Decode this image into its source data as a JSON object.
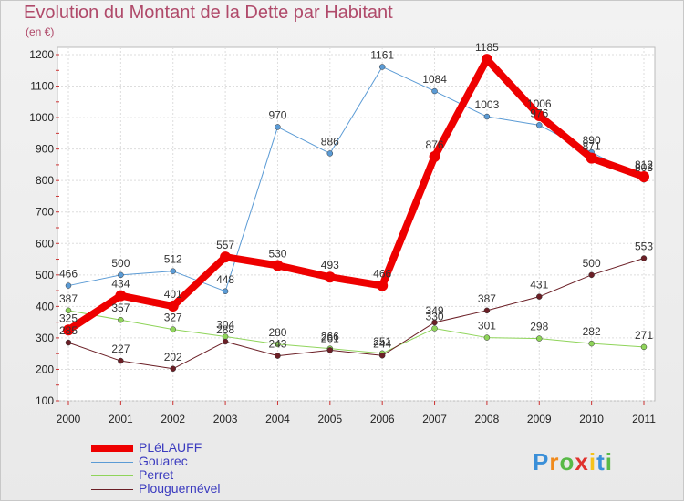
{
  "chart_data": {
    "type": "line",
    "title": "Evolution du Montant de la Dette par Habitant",
    "subtitle": "(en €)",
    "xlabel": "",
    "ylabel": "",
    "categories": [
      "2000",
      "2001",
      "2002",
      "2003",
      "2004",
      "2005",
      "2006",
      "2007",
      "2008",
      "2009",
      "2010",
      "2011"
    ],
    "ylim": [
      100,
      1200
    ],
    "yticks": [
      100,
      200,
      300,
      400,
      500,
      600,
      700,
      800,
      900,
      1000,
      1100,
      1200
    ],
    "grid": true,
    "legend_position": "bottom-left",
    "series": [
      {
        "name": "Gouarec",
        "color": "#5b9bd5",
        "width": 1,
        "values": [
          466,
          500,
          512,
          448,
          970,
          886,
          1161,
          1084,
          1003,
          976,
          890,
          803
        ]
      },
      {
        "name": "Perret",
        "color": "#8fd45a",
        "width": 1,
        "values": [
          387,
          357,
          327,
          304,
          280,
          266,
          251,
          330,
          301,
          298,
          282,
          271
        ]
      },
      {
        "name": "Plouguernével",
        "color": "#6b1f26",
        "width": 1,
        "values": [
          285,
          227,
          202,
          288,
          243,
          261,
          244,
          349,
          387,
          431,
          500,
          553
        ]
      },
      {
        "name": "PLéLAUFF",
        "color": "#ee0000",
        "width": 8,
        "values": [
          325,
          434,
          401,
          557,
          530,
          493,
          466,
          876,
          1185,
          1006,
          871,
          812
        ]
      }
    ]
  },
  "legend": {
    "items": [
      {
        "name": "PLéLAUFF",
        "color": "#ee0000",
        "width": 8
      },
      {
        "name": "Gouarec",
        "color": "#5b9bd5",
        "width": 1
      },
      {
        "name": "Perret",
        "color": "#8fd45a",
        "width": 1
      },
      {
        "name": "Plouguernével",
        "color": "#6b1f26",
        "width": 1
      }
    ]
  },
  "logo": {
    "letters": [
      "P",
      "r",
      "o",
      "x",
      "i",
      "t",
      "i"
    ],
    "colors": [
      "#3a8fd8",
      "#f08a1c",
      "#58b947",
      "#e0322d",
      "#f6c21a",
      "#3a8fd8",
      "#58b947"
    ]
  }
}
